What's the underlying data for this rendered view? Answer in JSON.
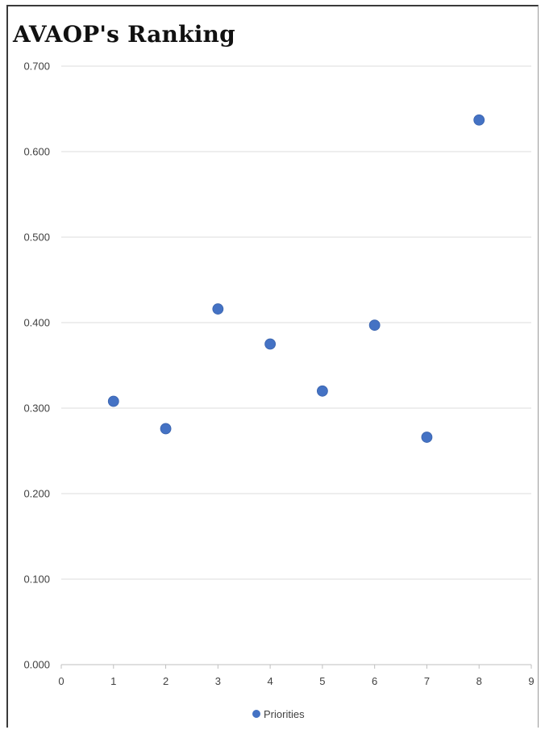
{
  "chart_data": {
    "type": "scatter",
    "title": "AVAOP's Ranking",
    "xlabel": "",
    "ylabel": "",
    "xlim": [
      0,
      9
    ],
    "ylim": [
      0,
      0.7
    ],
    "x_ticks": [
      "0",
      "1",
      "2",
      "3",
      "4",
      "5",
      "6",
      "7",
      "8",
      "9"
    ],
    "y_ticks": [
      "0.000",
      "0.100",
      "0.200",
      "0.300",
      "0.400",
      "0.500",
      "0.600",
      "0.700"
    ],
    "grid": "horizontal",
    "legend_position": "bottom",
    "series": [
      {
        "name": "Priorities",
        "color": "#4472c4",
        "x": [
          1,
          2,
          3,
          4,
          5,
          6,
          7,
          8
        ],
        "y": [
          0.308,
          0.276,
          0.416,
          0.375,
          0.32,
          0.397,
          0.266,
          0.637
        ]
      }
    ]
  }
}
